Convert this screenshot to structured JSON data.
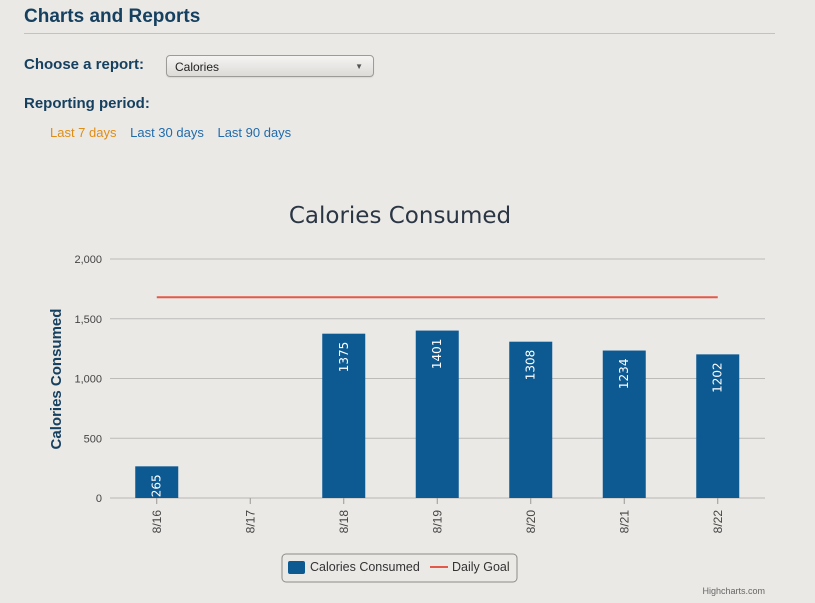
{
  "header": {
    "title": "Charts and Reports"
  },
  "report": {
    "label": "Choose a report:",
    "selected": "Calories"
  },
  "period": {
    "label": "Reporting period:",
    "options": [
      {
        "label": "Last 7 days",
        "active": true
      },
      {
        "label": "Last 30 days",
        "active": false
      },
      {
        "label": "Last 90 days",
        "active": false
      }
    ]
  },
  "credits": "Highcharts.com",
  "colors": {
    "bar": "#0d5a93",
    "goal": "#e35a4a",
    "heading": "#16405f"
  },
  "chart_data": {
    "type": "bar",
    "title": "Calories Consumed",
    "xlabel": "",
    "ylabel": "Calories Consumed",
    "ylim": [
      0,
      2000
    ],
    "yticks": [
      "0",
      "500",
      "1,000",
      "1,500",
      "2,000"
    ],
    "categories": [
      "8/16",
      "8/17",
      "8/18",
      "8/19",
      "8/20",
      "8/21",
      "8/22"
    ],
    "series": [
      {
        "name": "Calories Consumed",
        "type": "bar",
        "values": [
          265,
          null,
          1375,
          1401,
          1308,
          1234,
          1202
        ],
        "labels": [
          "265",
          "",
          "1375",
          "1401",
          "1308",
          "1234",
          "1202"
        ]
      },
      {
        "name": "Daily Goal",
        "type": "line",
        "values": [
          1680,
          1680,
          1680,
          1680,
          1680,
          1680,
          1680
        ]
      }
    ],
    "legend": "bottom-center"
  }
}
